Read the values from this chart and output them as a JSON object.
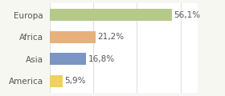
{
  "categories": [
    "Europa",
    "Africa",
    "Asia",
    "America"
  ],
  "values": [
    56.1,
    21.2,
    16.8,
    5.9
  ],
  "labels": [
    "56,1%",
    "21,2%",
    "16,8%",
    "5,9%"
  ],
  "bar_colors": [
    "#b5c98a",
    "#e8b07a",
    "#7b96c2",
    "#f0d060"
  ],
  "background_color": "#f7f7f2",
  "plot_bg_color": "#ffffff",
  "xlim": [
    0,
    68
  ],
  "bar_height": 0.55,
  "label_fontsize": 7.5,
  "tick_fontsize": 7.5,
  "grid_color": "#e0e0e0",
  "text_color": "#555555"
}
